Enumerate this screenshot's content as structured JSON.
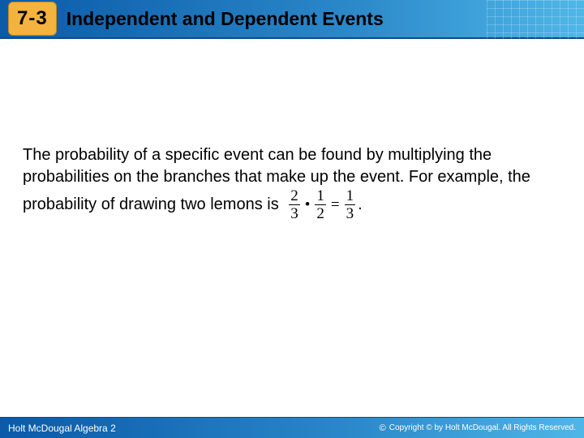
{
  "header": {
    "lesson_number": "7-3",
    "title": "Independent and Dependent Events",
    "badge_bg": "#f4b23e",
    "gradient_start": "#0a5aa8",
    "gradient_end": "#4fb7e8"
  },
  "content": {
    "paragraph_part1": "The probability of a specific event can be found by multiplying the probabilities on the branches that make up the event. For example, the",
    "paragraph_part2": "probability of drawing two lemons is",
    "math": {
      "f1_num": "2",
      "f1_den": "3",
      "op1": "•",
      "f2_num": "1",
      "f2_den": "2",
      "op2": "=",
      "f3_num": "1",
      "f3_den": "3",
      "tail": "."
    }
  },
  "footer": {
    "book": "Holt McDougal Algebra 2",
    "copyright": "Copyright © by Holt McDougal. All Rights Reserved."
  }
}
